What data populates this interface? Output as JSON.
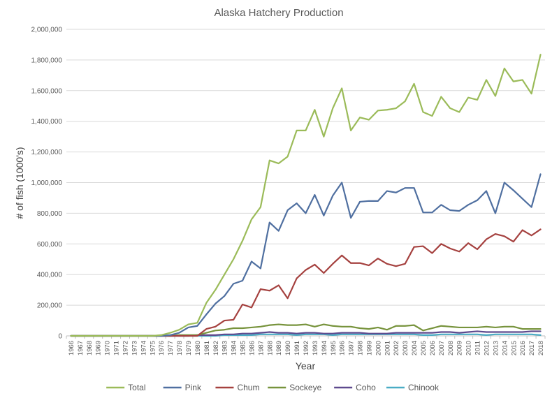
{
  "chart_data": {
    "type": "line",
    "title": "Alaska Hatchery Production",
    "xlabel": "Year",
    "ylabel": "# of fish (1000's)",
    "ylim": [
      0,
      2000000
    ],
    "yticks": [
      "0",
      "200,000",
      "400,000",
      "600,000",
      "800,000",
      "1,000,000",
      "1,200,000",
      "1,400,000",
      "1,600,000",
      "1,800,000",
      "2,000,000"
    ],
    "grid": true,
    "legend_position": "bottom",
    "x": [
      "1966",
      "1967",
      "1968",
      "1969",
      "1970",
      "1971",
      "1972",
      "1973",
      "1974",
      "1975",
      "1976",
      "1977",
      "1978",
      "1979",
      "1980",
      "1981",
      "1982",
      "1983",
      "1984",
      "1985",
      "1986",
      "1987",
      "1988",
      "1989",
      "1990",
      "1991",
      "1992",
      "1993",
      "1994",
      "1995",
      "1996",
      "1997",
      "1998",
      "1999",
      "2000",
      "2001",
      "2002",
      "2003",
      "2004",
      "2005",
      "2006",
      "2007",
      "2008",
      "2009",
      "2010",
      "2011",
      "2012",
      "2013",
      "2014",
      "2015",
      "2016",
      "2017",
      "2018"
    ],
    "series": [
      {
        "name": "Total",
        "color": "#9bbb59",
        "values": [
          0,
          0,
          0,
          0,
          0,
          0,
          0,
          0,
          0,
          0,
          5000,
          20000,
          40000,
          75000,
          85000,
          215000,
          300000,
          400000,
          500000,
          620000,
          760000,
          840000,
          1145000,
          1125000,
          1170000,
          1340000,
          1340000,
          1475000,
          1300000,
          1485000,
          1615000,
          1340000,
          1425000,
          1410000,
          1470000,
          1475000,
          1485000,
          1530000,
          1645000,
          1460000,
          1435000,
          1560000,
          1485000,
          1460000,
          1555000,
          1540000,
          1670000,
          1565000,
          1745000,
          1660000,
          1670000,
          1580000,
          1835000
        ]
      },
      {
        "name": "Pink",
        "color": "#4f6fa0",
        "values": [
          0,
          0,
          0,
          0,
          0,
          0,
          0,
          0,
          0,
          0,
          0,
          5000,
          20000,
          55000,
          65000,
          140000,
          210000,
          260000,
          340000,
          360000,
          485000,
          440000,
          740000,
          685000,
          820000,
          865000,
          800000,
          920000,
          785000,
          915000,
          1000000,
          770000,
          875000,
          880000,
          880000,
          945000,
          935000,
          965000,
          965000,
          805000,
          805000,
          855000,
          820000,
          815000,
          855000,
          885000,
          945000,
          800000,
          1000000,
          950000,
          895000,
          840000,
          1055000
        ]
      },
      {
        "name": "Chum",
        "color": "#a5413f",
        "values": [
          0,
          0,
          0,
          0,
          0,
          0,
          0,
          0,
          0,
          0,
          0,
          0,
          0,
          0,
          0,
          45000,
          60000,
          100000,
          105000,
          205000,
          185000,
          305000,
          295000,
          330000,
          245000,
          375000,
          430000,
          465000,
          410000,
          470000,
          525000,
          475000,
          475000,
          460000,
          505000,
          470000,
          455000,
          470000,
          580000,
          585000,
          540000,
          600000,
          570000,
          550000,
          605000,
          565000,
          630000,
          665000,
          650000,
          615000,
          690000,
          655000,
          695000
        ]
      },
      {
        "name": "Sockeye",
        "color": "#77933c",
        "values": [
          0,
          0,
          0,
          0,
          0,
          0,
          0,
          0,
          0,
          0,
          0,
          0,
          5000,
          5000,
          5000,
          20000,
          35000,
          40000,
          50000,
          50000,
          55000,
          60000,
          70000,
          75000,
          70000,
          70000,
          75000,
          60000,
          75000,
          65000,
          60000,
          60000,
          50000,
          45000,
          55000,
          40000,
          65000,
          65000,
          70000,
          35000,
          50000,
          65000,
          60000,
          55000,
          55000,
          55000,
          60000,
          55000,
          60000,
          60000,
          45000,
          45000,
          45000
        ]
      },
      {
        "name": "Coho",
        "color": "#5e4a8e",
        "values": [
          0,
          0,
          0,
          0,
          0,
          0,
          0,
          0,
          0,
          0,
          0,
          0,
          0,
          0,
          5000,
          5000,
          5000,
          10000,
          10000,
          15000,
          15000,
          20000,
          25000,
          20000,
          20000,
          15000,
          20000,
          20000,
          15000,
          15000,
          20000,
          20000,
          20000,
          15000,
          15000,
          15000,
          20000,
          20000,
          20000,
          20000,
          20000,
          25000,
          25000,
          20000,
          25000,
          30000,
          25000,
          25000,
          25000,
          25000,
          25000,
          30000,
          30000
        ]
      },
      {
        "name": "Chinook",
        "color": "#4aacc5",
        "values": [
          0,
          0,
          0,
          0,
          0,
          0,
          0,
          0,
          0,
          0,
          0,
          0,
          0,
          0,
          0,
          0,
          0,
          5000,
          5000,
          5000,
          5000,
          10000,
          10000,
          10000,
          10000,
          5000,
          10000,
          10000,
          10000,
          5000,
          10000,
          10000,
          10000,
          10000,
          10000,
          10000,
          10000,
          10000,
          10000,
          5000,
          5000,
          10000,
          10000,
          10000,
          10000,
          10000,
          5000,
          10000,
          10000,
          10000,
          10000,
          10000,
          5000
        ]
      }
    ]
  }
}
